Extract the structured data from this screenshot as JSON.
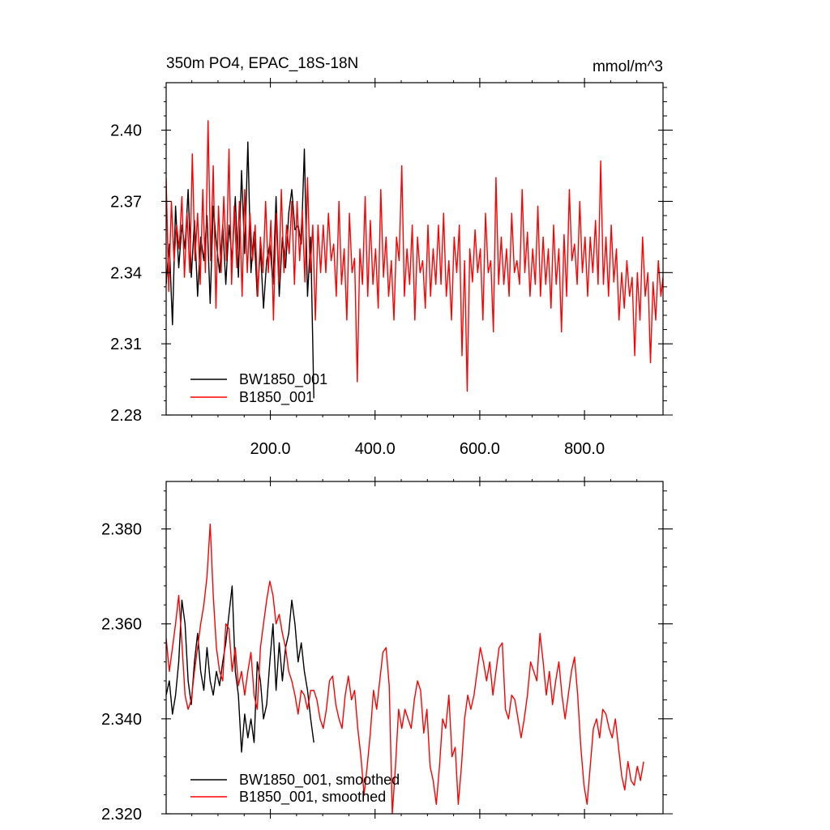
{
  "chart_data": [
    {
      "type": "line",
      "title": "350m PO4, EPAC_18S-18N",
      "units_label": "mmol/m^3",
      "xlim": [
        1,
        950
      ],
      "ylim": [
        2.28,
        2.42
      ],
      "x_ticks": [
        200,
        400,
        600,
        800
      ],
      "x_tick_labels": [
        "200.0",
        "400.0",
        "600.0",
        "800.0"
      ],
      "y_ticks": [
        2.28,
        2.31,
        2.34,
        2.37,
        2.4
      ],
      "y_tick_labels": [
        "2.28",
        "2.31",
        "2.34",
        "2.37",
        "2.40"
      ],
      "grid": false,
      "legend_position": "bottom-left",
      "series": [
        {
          "name": "BW1850_001",
          "color": "#000000",
          "x_start": 1,
          "x_step": 6,
          "values": [
            2.335,
            2.352,
            2.318,
            2.368,
            2.342,
            2.36,
            2.35,
            2.375,
            2.338,
            2.362,
            2.33,
            2.355,
            2.345,
            2.364,
            2.327,
            2.368,
            2.352,
            2.34,
            2.36,
            2.335,
            2.36,
            2.345,
            2.372,
            2.338,
            2.383,
            2.348,
            2.395,
            2.34,
            2.357,
            2.33,
            2.35,
            2.325,
            2.345,
            2.352,
            2.335,
            2.372,
            2.33,
            2.355,
            2.342,
            2.365,
            2.375,
            2.358,
            2.36,
            2.352,
            2.392,
            2.33,
            2.355,
            2.287
          ]
        },
        {
          "name": "B1850_001",
          "color": "#ff0000",
          "x_start": 1,
          "x_step": 5,
          "values": [
            2.38,
            2.332,
            2.37,
            2.345,
            2.36,
            2.35,
            2.372,
            2.338,
            2.365,
            2.34,
            2.39,
            2.345,
            2.365,
            2.335,
            2.375,
            2.34,
            2.404,
            2.345,
            2.385,
            2.325,
            2.368,
            2.34,
            2.372,
            2.345,
            2.392,
            2.335,
            2.368,
            2.342,
            2.37,
            2.33,
            2.375,
            2.34,
            2.365,
            2.345,
            2.36,
            2.33,
            2.355,
            2.34,
            2.37,
            2.34,
            2.362,
            2.32,
            2.365,
            2.335,
            2.375,
            2.34,
            2.36,
            2.348,
            2.37,
            2.335,
            2.37,
            2.345,
            2.366,
            2.336,
            2.38,
            2.34,
            2.36,
            2.32,
            2.36,
            2.34,
            2.36,
            2.34,
            2.365,
            2.345,
            2.352,
            2.33,
            2.37,
            2.335,
            2.35,
            2.32,
            2.365,
            2.34,
            2.346,
            2.294,
            2.35,
            2.335,
            2.372,
            2.33,
            2.362,
            2.335,
            2.35,
            2.325,
            2.375,
            2.338,
            2.355,
            2.33,
            2.345,
            2.32,
            2.355,
            2.345,
            2.385,
            2.33,
            2.35,
            2.335,
            2.36,
            2.32,
            2.355,
            2.34,
            2.345,
            2.325,
            2.36,
            2.33,
            2.35,
            2.335,
            2.36,
            2.335,
            2.365,
            2.33,
            2.345,
            2.32,
            2.355,
            2.34,
            2.36,
            2.305,
            2.345,
            2.29,
            2.35,
            2.336,
            2.358,
            2.34,
            2.35,
            2.32,
            2.365,
            2.34,
            2.345,
            2.315,
            2.38,
            2.335,
            2.355,
            2.335,
            2.35,
            2.33,
            2.365,
            2.34,
            2.345,
            2.335,
            2.375,
            2.34,
            2.357,
            2.33,
            2.35,
            2.335,
            2.368,
            2.33,
            2.355,
            2.335,
            2.35,
            2.325,
            2.36,
            2.335,
            2.35,
            2.315,
            2.356,
            2.33,
            2.375,
            2.345,
            2.352,
            2.335,
            2.37,
            2.34,
            2.355,
            2.33,
            2.355,
            2.34,
            2.362,
            2.335,
            2.387,
            2.335,
            2.355,
            2.33,
            2.36,
            2.336,
            2.35,
            2.32,
            2.34,
            2.325,
            2.345,
            2.33,
            2.338,
            2.305,
            2.34,
            2.32,
            2.355,
            2.33,
            2.34,
            2.302,
            2.336,
            2.32,
            2.345,
            2.33,
            2.34,
            2.308
          ]
        }
      ],
      "legend_entries": [
        "BW1850_001",
        "B1850_001"
      ]
    },
    {
      "type": "line",
      "title": "",
      "xlim": [
        1,
        950
      ],
      "ylim": [
        2.32,
        2.39
      ],
      "x_ticks": [
        200,
        400,
        600,
        800
      ],
      "y_ticks": [
        2.32,
        2.34,
        2.36,
        2.38
      ],
      "y_tick_labels": [
        "2.320",
        "2.340",
        "2.360",
        "2.380"
      ],
      "grid": false,
      "legend_position": "bottom-left",
      "series": [
        {
          "name": "BW1850_001, smoothed",
          "color": "#000000",
          "x_start": 1,
          "x_step": 6,
          "values": [
            2.345,
            2.348,
            2.341,
            2.345,
            2.352,
            2.365,
            2.36,
            2.348,
            2.343,
            2.352,
            2.358,
            2.35,
            2.346,
            2.355,
            2.348,
            2.345,
            2.35,
            2.347,
            2.352,
            2.356,
            2.362,
            2.368,
            2.35,
            2.345,
            2.333,
            2.341,
            2.336,
            2.34,
            2.335,
            2.352,
            2.348,
            2.34,
            2.343,
            2.352,
            2.36,
            2.346,
            2.356,
            2.348,
            2.355,
            2.358,
            2.365,
            2.36,
            2.352,
            2.356,
            2.35,
            2.346,
            2.34,
            2.335
          ]
        },
        {
          "name": "B1850_001, smoothed",
          "color": "#ff0000",
          "x_start": 1,
          "x_step": 6,
          "values": [
            2.357,
            2.35,
            2.355,
            2.36,
            2.366,
            2.356,
            2.345,
            2.342,
            2.344,
            2.35,
            2.355,
            2.36,
            2.364,
            2.37,
            2.381,
            2.366,
            2.355,
            2.35,
            2.348,
            2.36,
            2.359,
            2.35,
            2.355,
            2.347,
            2.35,
            2.345,
            2.35,
            2.354,
            2.345,
            2.342,
            2.355,
            2.36,
            2.365,
            2.369,
            2.366,
            2.36,
            2.362,
            2.358,
            2.355,
            2.35,
            2.348,
            2.345,
            2.341,
            2.346,
            2.345,
            2.342,
            2.346,
            2.346,
            2.344,
            2.34,
            2.338,
            2.342,
            2.348,
            2.349,
            2.343,
            2.34,
            2.338,
            2.345,
            2.349,
            2.344,
            2.346,
            2.338,
            2.332,
            2.324,
            2.33,
            2.337,
            2.346,
            2.342,
            2.348,
            2.354,
            2.355,
            2.347,
            2.32,
            2.33,
            2.342,
            2.338,
            2.342,
            2.34,
            2.338,
            2.344,
            2.348,
            2.346,
            2.337,
            2.342,
            2.33,
            2.327,
            2.322,
            2.33,
            2.34,
            2.338,
            2.345,
            2.332,
            2.334,
            2.322,
            2.33,
            2.34,
            2.345,
            2.342,
            2.345,
            2.35,
            2.355,
            2.352,
            2.348,
            2.352,
            2.345,
            2.35,
            2.355,
            2.356,
            2.342,
            2.34,
            2.345,
            2.344,
            2.34,
            2.336,
            2.34,
            2.345,
            2.352,
            2.35,
            2.348,
            2.358,
            2.352,
            2.345,
            2.35,
            2.343,
            2.348,
            2.352,
            2.345,
            2.34,
            2.345,
            2.35,
            2.353,
            2.345,
            2.334,
            2.326,
            2.322,
            2.33,
            2.338,
            2.34,
            2.336,
            2.342,
            2.341,
            2.338,
            2.336,
            2.34,
            2.334,
            2.328,
            2.325,
            2.331,
            2.327,
            2.326,
            2.33,
            2.327,
            2.331
          ]
        }
      ],
      "legend_entries": [
        "BW1850_001, smoothed",
        "B1850_001, smoothed"
      ]
    }
  ]
}
